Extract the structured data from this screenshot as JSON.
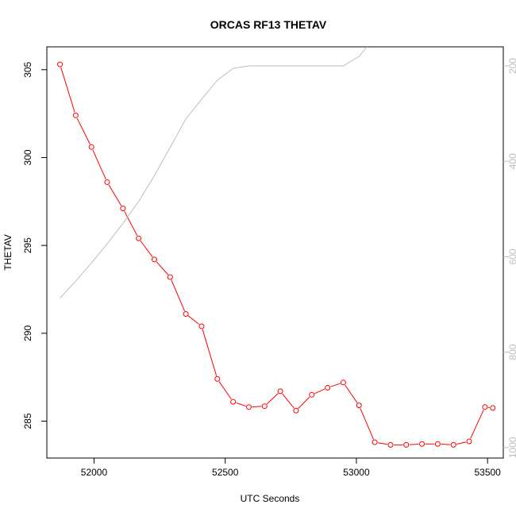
{
  "chart_data": {
    "type": "line",
    "title": "ORCAS RF13 THETAV",
    "xlabel": "UTC Seconds",
    "ylabel": "THETAV",
    "xlim": [
      51820,
      53560
    ],
    "ylim": [
      282.9,
      306.3
    ],
    "x_ticks": [
      52000,
      52500,
      53000,
      53500
    ],
    "y_ticks": [
      285,
      290,
      295,
      300,
      305
    ],
    "series": [
      {
        "color": "#ff0000",
        "markers": "open-circle",
        "x": [
          51870,
          51930,
          51990,
          52050,
          52110,
          52170,
          52230,
          52290,
          52350,
          52410,
          52470,
          52530,
          52590,
          52650,
          52710,
          52770,
          52830,
          52890,
          52950,
          53010,
          53070,
          53130,
          53190,
          53250,
          53310,
          53370,
          53430,
          53490,
          53520
        ],
        "y": [
          305.3,
          302.4,
          300.6,
          298.6,
          297.1,
          295.4,
          294.2,
          293.2,
          291.1,
          290.4,
          287.4,
          286.1,
          285.8,
          285.85,
          286.7,
          285.6,
          286.5,
          286.9,
          287.2,
          285.9,
          283.8,
          283.65,
          283.65,
          283.7,
          283.7,
          283.65,
          283.85,
          285.8,
          285.75
        ]
      },
      {
        "color": "#bdbdbd",
        "axis": "right",
        "x": [
          51870,
          51930,
          51990,
          52050,
          52110,
          52170,
          52230,
          52290,
          52350,
          52410,
          52470,
          52530,
          52590,
          52650,
          52710,
          52770,
          52830,
          52890,
          52950,
          53010,
          53040
        ],
        "y": [
          687,
          651,
          613,
          573,
          530,
          484,
          430,
          371,
          311,
          270,
          230,
          205,
          200,
          200,
          200,
          200,
          200,
          200,
          200,
          180,
          160
        ]
      }
    ],
    "y2lim": [
      1022,
      160
    ],
    "y2_ticks": [
      200,
      400,
      600,
      800,
      1000
    ],
    "grid": false
  }
}
